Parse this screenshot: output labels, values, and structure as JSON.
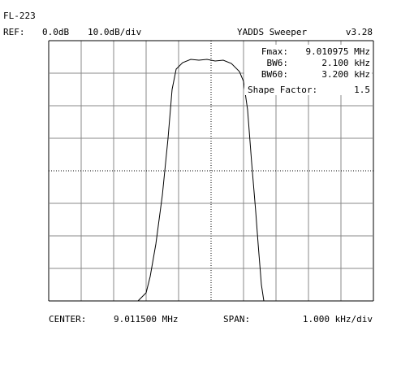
{
  "chart_data": {
    "type": "line",
    "title": "FL-223",
    "ref_label": "REF:",
    "ref": "0.0dB",
    "scale": "10.0dB/div",
    "app": "YADDS Sweeper",
    "version": "v3.28",
    "readouts": [
      {
        "label": "Fmax:",
        "value": "9.010975 MHz"
      },
      {
        "label": "BW6:",
        "value": "2.100 kHz"
      },
      {
        "label": "BW60:",
        "value": "3.200 kHz"
      },
      {
        "label": "Shape Factor:",
        "value": "1.5"
      }
    ],
    "center_label": "CENTER:",
    "center": "9.011500 MHz",
    "span_label": "SPAN:",
    "span": "1.000 kHz/div",
    "x": [
      9.00925,
      9.0095,
      9.009625,
      9.0098,
      9.01,
      9.010175,
      9.0103,
      9.010425,
      9.010625,
      9.010875,
      9.011125,
      9.011375,
      9.011625,
      9.011875,
      9.012125,
      9.012375,
      9.0125,
      9.012625,
      9.01275,
      9.012875,
      9.01295,
      9.01305,
      9.013125
    ],
    "series": [
      {
        "color": "#000000",
        "values": [
          -80,
          -77.5,
          -72.5,
          -62.5,
          -47.5,
          -30,
          -15,
          -8.75,
          -6.75,
          -5.75,
          -6,
          -5.75,
          -6.25,
          -6,
          -7,
          -9.5,
          -12.5,
          -21.25,
          -37.5,
          -52.5,
          -62.5,
          -75,
          -80
        ]
      }
    ],
    "xlim": [
      9.0065,
      9.0165
    ],
    "ylim": [
      -80,
      0
    ],
    "xticks": [
      9.0065,
      9.0075,
      9.0085,
      9.0095,
      9.0105,
      9.0115,
      9.0125,
      9.0135,
      9.0145,
      9.0155,
      9.0165
    ],
    "yticks": [
      -80,
      -70,
      -60,
      -50,
      -40,
      -30,
      -20,
      -10,
      0
    ],
    "grid": true
  }
}
